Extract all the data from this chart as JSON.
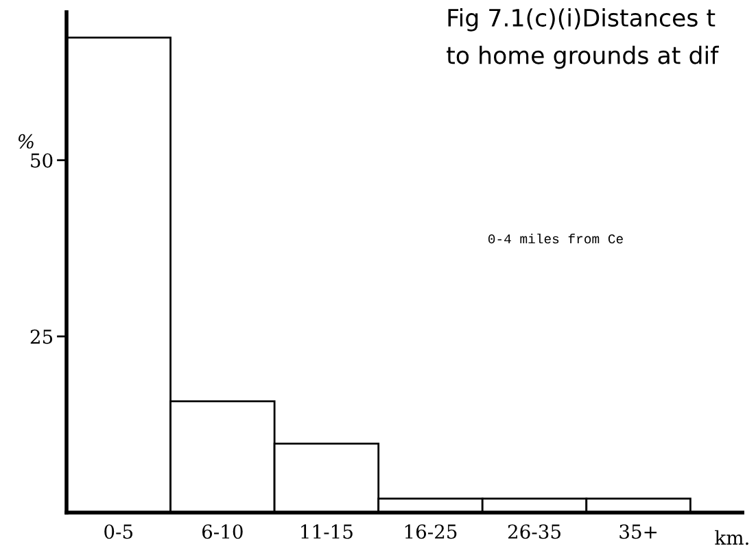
{
  "chart_data": {
    "type": "bar",
    "title": "Fig 7.1(c)(i)Distances t\nto home grounds at dif",
    "categories": [
      "0-5",
      "6-10",
      "11-15",
      "16-25",
      "26-35",
      "35+"
    ],
    "values": [
      67.4,
      15.8,
      9.8,
      2.0,
      2.0,
      2.0
    ],
    "color": "#ffffff",
    "ylabel": "%",
    "xlabel": "km.",
    "ylim": [
      0,
      71
    ],
    "yticks": [
      25,
      50
    ],
    "annotations": [
      "0-4 miles from Ce"
    ],
    "grid": false,
    "legend": false
  }
}
